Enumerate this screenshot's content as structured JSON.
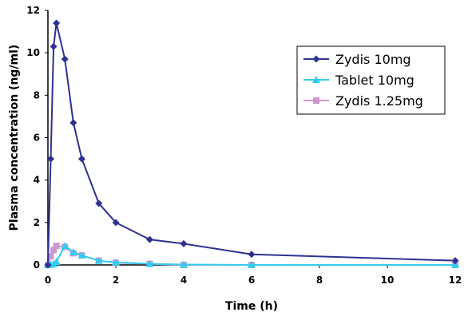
{
  "chart_data": {
    "type": "line",
    "title": "",
    "xlabel": "Time (h)",
    "ylabel": "Plasma concentration (ng/ml)",
    "xlim": [
      0,
      12
    ],
    "ylim": [
      0,
      12
    ],
    "xticks": [
      "0",
      "2",
      "4",
      "6",
      "8",
      "10",
      "12"
    ],
    "yticks": [
      "0",
      "2",
      "4",
      "6",
      "8",
      "10",
      "12"
    ],
    "grid": false,
    "legend_position": "top-right",
    "series": [
      {
        "name": "Zydis 10mg",
        "color": "#2e3192",
        "marker": "diamond",
        "points": [
          [
            0,
            0
          ],
          [
            0.083,
            5.0
          ],
          [
            0.167,
            10.3
          ],
          [
            0.25,
            11.4
          ],
          [
            0.5,
            9.7
          ],
          [
            0.75,
            6.7
          ],
          [
            1,
            5.0
          ],
          [
            1.5,
            2.9
          ],
          [
            2,
            2.0
          ],
          [
            3,
            1.2
          ],
          [
            4,
            1.0
          ],
          [
            6,
            0.5
          ],
          [
            12,
            0.2
          ]
        ]
      },
      {
        "name": "Tablet 10mg",
        "color": "#33ccee",
        "marker": "triangle",
        "points": [
          [
            0,
            0
          ],
          [
            0.083,
            0.02
          ],
          [
            0.167,
            0.05
          ],
          [
            0.25,
            0.15
          ],
          [
            0.5,
            0.9
          ],
          [
            0.75,
            0.6
          ],
          [
            1,
            0.45
          ],
          [
            1.5,
            0.2
          ],
          [
            2,
            0.12
          ],
          [
            3,
            0.05
          ],
          [
            4,
            0.02
          ],
          [
            6,
            0.0
          ],
          [
            12,
            0.0
          ]
        ]
      },
      {
        "name": "Zydis 1.25mg",
        "color": "#cc99cc",
        "marker": "square",
        "points": [
          [
            0,
            0
          ],
          [
            0.083,
            0.4
          ],
          [
            0.167,
            0.7
          ],
          [
            0.25,
            0.9
          ],
          [
            0.5,
            0.85
          ],
          [
            0.75,
            0.55
          ],
          [
            1,
            0.45
          ],
          [
            1.5,
            0.2
          ],
          [
            2,
            0.1
          ],
          [
            3,
            0.05
          ],
          [
            4,
            0.0
          ],
          [
            6,
            0.0
          ],
          [
            12,
            0.0
          ]
        ]
      }
    ]
  }
}
